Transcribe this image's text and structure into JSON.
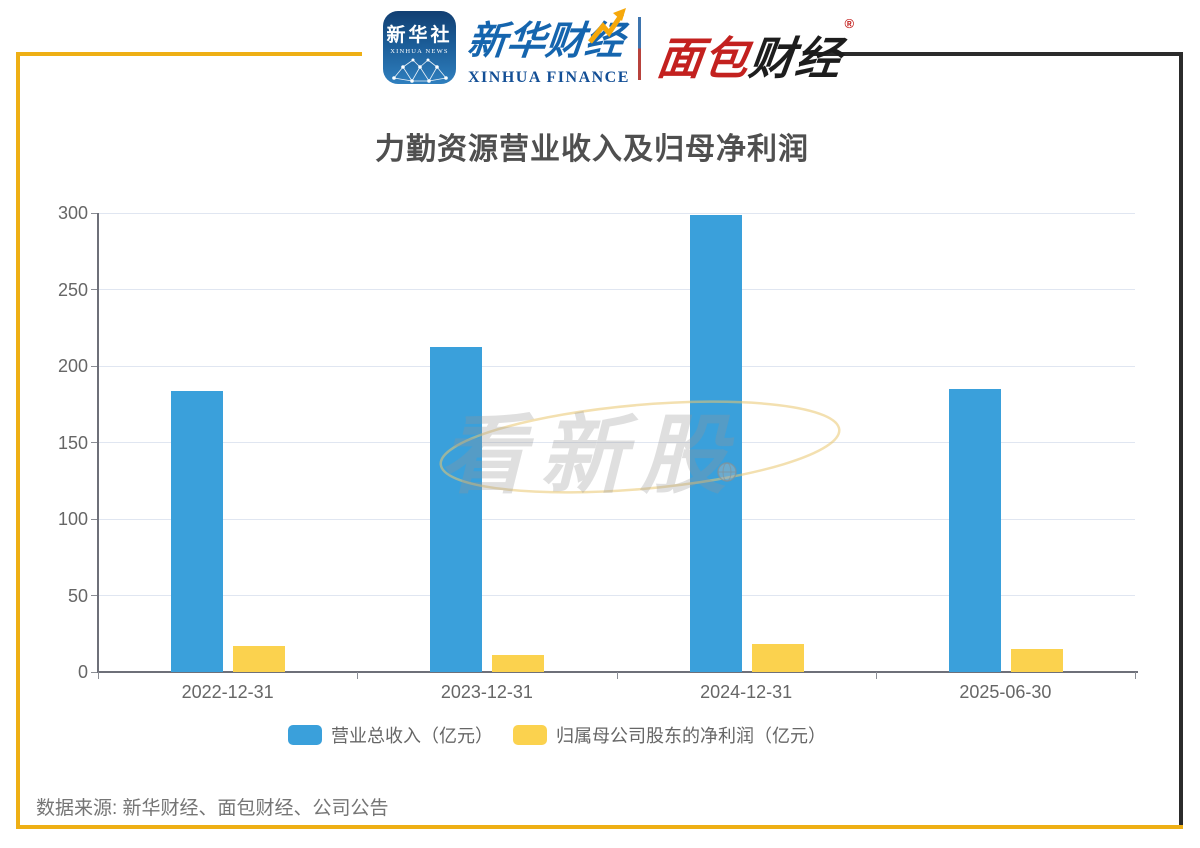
{
  "header": {
    "xinhua_news_icon": {
      "title": "新华社",
      "subtitle": "XINHUA NEWS"
    },
    "xinhua_finance_logo": {
      "cn": "新华财经",
      "en": "XINHUA FINANCE"
    },
    "bread_finance_logo": {
      "part1": "面包",
      "part2": "财经",
      "registered_mark": "®"
    }
  },
  "watermark": {
    "text": "看新股"
  },
  "chart_data": {
    "type": "bar",
    "title": "力勤资源营业收入及归母净利润",
    "categories": [
      "2022-12-31",
      "2023-12-31",
      "2024-12-31",
      "2025-06-30"
    ],
    "series": [
      {
        "name": "营业总收入（亿元）",
        "color": "#3AA0DB",
        "values": [
          183.7,
          212.6,
          298.6,
          185.1
        ]
      },
      {
        "name": "归属母公司股东的净利润（亿元）",
        "color": "#FBD24E",
        "values": [
          17.2,
          10.9,
          18.2,
          15.0
        ]
      }
    ],
    "xlabel": "",
    "ylabel": "",
    "ylim": [
      0,
      300
    ],
    "yticks": [
      0,
      50,
      100,
      150,
      200,
      250,
      300
    ],
    "grid": true,
    "legend_position": "bottom"
  },
  "footer": {
    "source": "数据来源: 新华财经、面包财经、公司公告"
  },
  "colors": {
    "revenue_bar": "#3AA0DB",
    "profit_bar": "#FBD24E",
    "frame_yellow": "#EEAF15",
    "frame_dark": "#2B2B2B",
    "axis": "#6E7079",
    "gridline": "#E0E6F1",
    "axis_text": "#666666",
    "title_text": "#4F4F4F"
  }
}
